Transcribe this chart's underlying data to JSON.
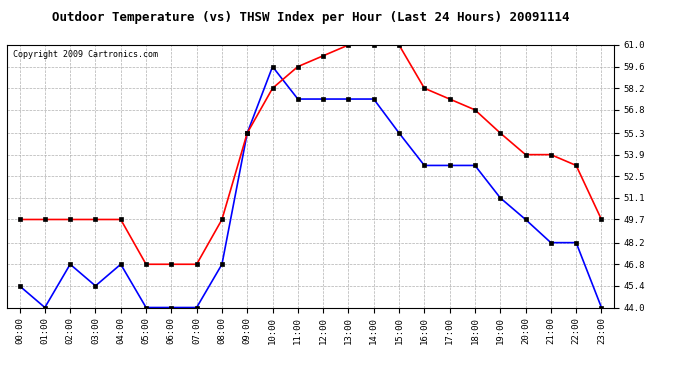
{
  "title": "Outdoor Temperature (vs) THSW Index per Hour (Last 24 Hours) 20091114",
  "copyright": "Copyright 2009 Cartronics.com",
  "hours": [
    "00:00",
    "01:00",
    "02:00",
    "03:00",
    "04:00",
    "05:00",
    "06:00",
    "07:00",
    "08:00",
    "09:00",
    "10:00",
    "11:00",
    "12:00",
    "13:00",
    "14:00",
    "15:00",
    "16:00",
    "17:00",
    "18:00",
    "19:00",
    "20:00",
    "21:00",
    "22:00",
    "23:00"
  ],
  "blue_data": [
    45.4,
    44.0,
    46.8,
    45.4,
    46.8,
    44.0,
    44.0,
    44.0,
    46.8,
    55.3,
    59.6,
    57.5,
    57.5,
    57.5,
    57.5,
    55.3,
    53.2,
    53.2,
    53.2,
    51.1,
    49.7,
    48.2,
    48.2,
    44.0
  ],
  "red_data": [
    49.7,
    49.7,
    49.7,
    49.7,
    49.7,
    46.8,
    46.8,
    46.8,
    49.7,
    55.3,
    58.2,
    59.6,
    60.3,
    61.0,
    61.0,
    61.0,
    58.2,
    57.5,
    56.8,
    55.3,
    53.9,
    53.9,
    53.2,
    49.7
  ],
  "ylim_min": 44.0,
  "ylim_max": 61.0,
  "yticks": [
    44.0,
    45.4,
    46.8,
    48.2,
    49.7,
    51.1,
    52.5,
    53.9,
    55.3,
    56.8,
    58.2,
    59.6,
    61.0
  ],
  "blue_color": "#0000ff",
  "red_color": "#ff0000",
  "bg_color": "#ffffff",
  "grid_color": "#b0b0b0",
  "title_fontsize": 9,
  "copyright_fontsize": 6,
  "tick_fontsize": 6.5
}
